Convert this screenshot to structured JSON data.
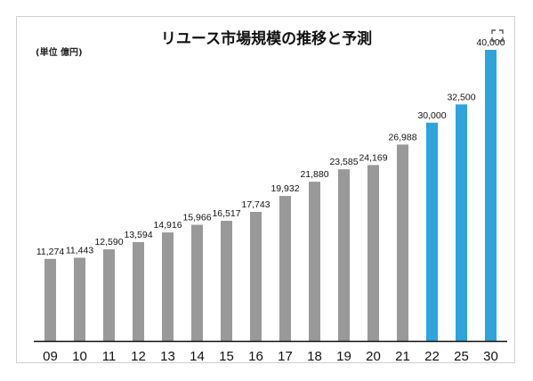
{
  "title": "リユース市場規模の推移と予測",
  "unit_label": "(単位 億円)",
  "icons": {
    "corner": "scan-icon"
  },
  "colors": {
    "actual": "#999999",
    "forecast": "#2fa3dc",
    "axis": "#111111"
  },
  "chart_data": {
    "type": "bar",
    "title": "リユース市場規模の推移と予測",
    "unit": "(単位 億円)",
    "categories": [
      "09",
      "10",
      "11",
      "12",
      "13",
      "14",
      "15",
      "16",
      "17",
      "18",
      "19",
      "20",
      "21",
      "22",
      "25",
      "30"
    ],
    "values": [
      11274,
      11443,
      12590,
      13594,
      14916,
      15966,
      16517,
      17743,
      19932,
      21880,
      23585,
      24169,
      26988,
      30000,
      32500,
      40000
    ],
    "value_labels": [
      "11,274",
      "11,443",
      "12,590",
      "13,594",
      "14,916",
      "15,966",
      "16,517",
      "17,743",
      "19,932",
      "21,880",
      "23,585",
      "24,169",
      "26,988",
      "30,000",
      "32,500",
      "40,000"
    ],
    "forecast_from_index": 13,
    "ylim": [
      0,
      40000
    ],
    "grid": false,
    "legend": "none"
  }
}
